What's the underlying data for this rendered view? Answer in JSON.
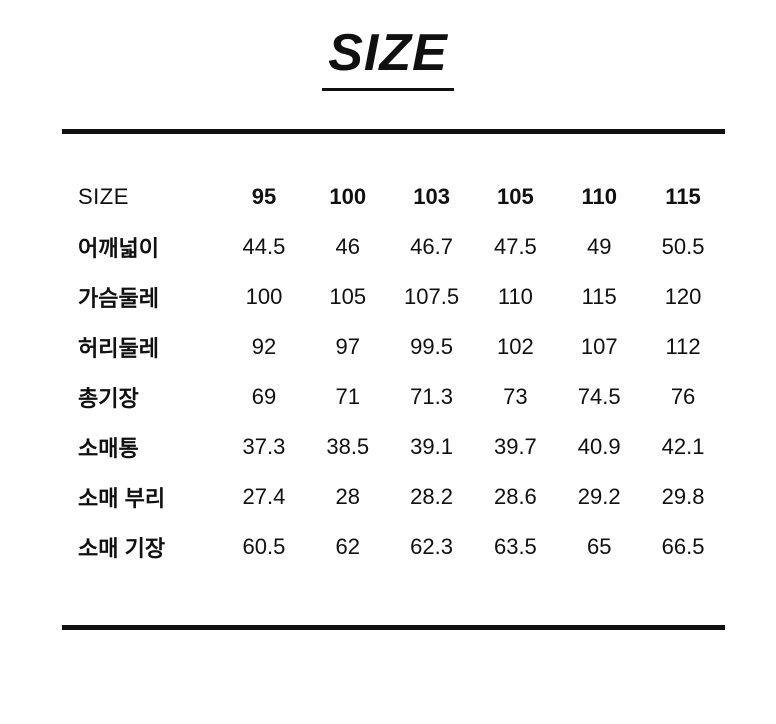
{
  "page": {
    "title": "SIZE"
  },
  "colors": {
    "background": "#ffffff",
    "text": "#101010",
    "rule": "#101010"
  },
  "table": {
    "header": [
      "SIZE",
      "95",
      "100",
      "103",
      "105",
      "110",
      "115"
    ],
    "rows": [
      {
        "label": "어깨넓이",
        "values": [
          "44.5",
          "46",
          "46.7",
          "47.5",
          "49",
          "50.5"
        ]
      },
      {
        "label": "가슴둘레",
        "values": [
          "100",
          "105",
          "107.5",
          "110",
          "115",
          "120"
        ]
      },
      {
        "label": "허리둘레",
        "values": [
          "92",
          "97",
          "99.5",
          "102",
          "107",
          "112"
        ]
      },
      {
        "label": "총기장",
        "values": [
          "69",
          "71",
          "71.3",
          "73",
          "74.5",
          "76"
        ]
      },
      {
        "label": "소매통",
        "values": [
          "37.3",
          "38.5",
          "39.1",
          "39.7",
          "40.9",
          "42.1"
        ]
      },
      {
        "label": "소매 부리",
        "values": [
          "27.4",
          "28",
          "28.2",
          "28.6",
          "29.2",
          "29.8"
        ]
      },
      {
        "label": "소매 기장",
        "values": [
          "60.5",
          "62",
          "62.3",
          "63.5",
          "65",
          "66.5"
        ]
      }
    ]
  },
  "chart_data": {
    "type": "table",
    "title": "SIZE",
    "columns": [
      "SIZE",
      "95",
      "100",
      "103",
      "105",
      "110",
      "115"
    ],
    "rows": [
      [
        "어깨넓이",
        44.5,
        46,
        46.7,
        47.5,
        49,
        50.5
      ],
      [
        "가슴둘레",
        100,
        105,
        107.5,
        110,
        115,
        120
      ],
      [
        "허리둘레",
        92,
        97,
        99.5,
        102,
        107,
        112
      ],
      [
        "총기장",
        69,
        71,
        71.3,
        73,
        74.5,
        76
      ],
      [
        "소매통",
        37.3,
        38.5,
        39.1,
        39.7,
        40.9,
        42.1
      ],
      [
        "소매 부리",
        27.4,
        28,
        28.2,
        28.6,
        29.2,
        29.8
      ],
      [
        "소매 기장",
        60.5,
        62,
        62.3,
        63.5,
        65,
        66.5
      ]
    ]
  }
}
